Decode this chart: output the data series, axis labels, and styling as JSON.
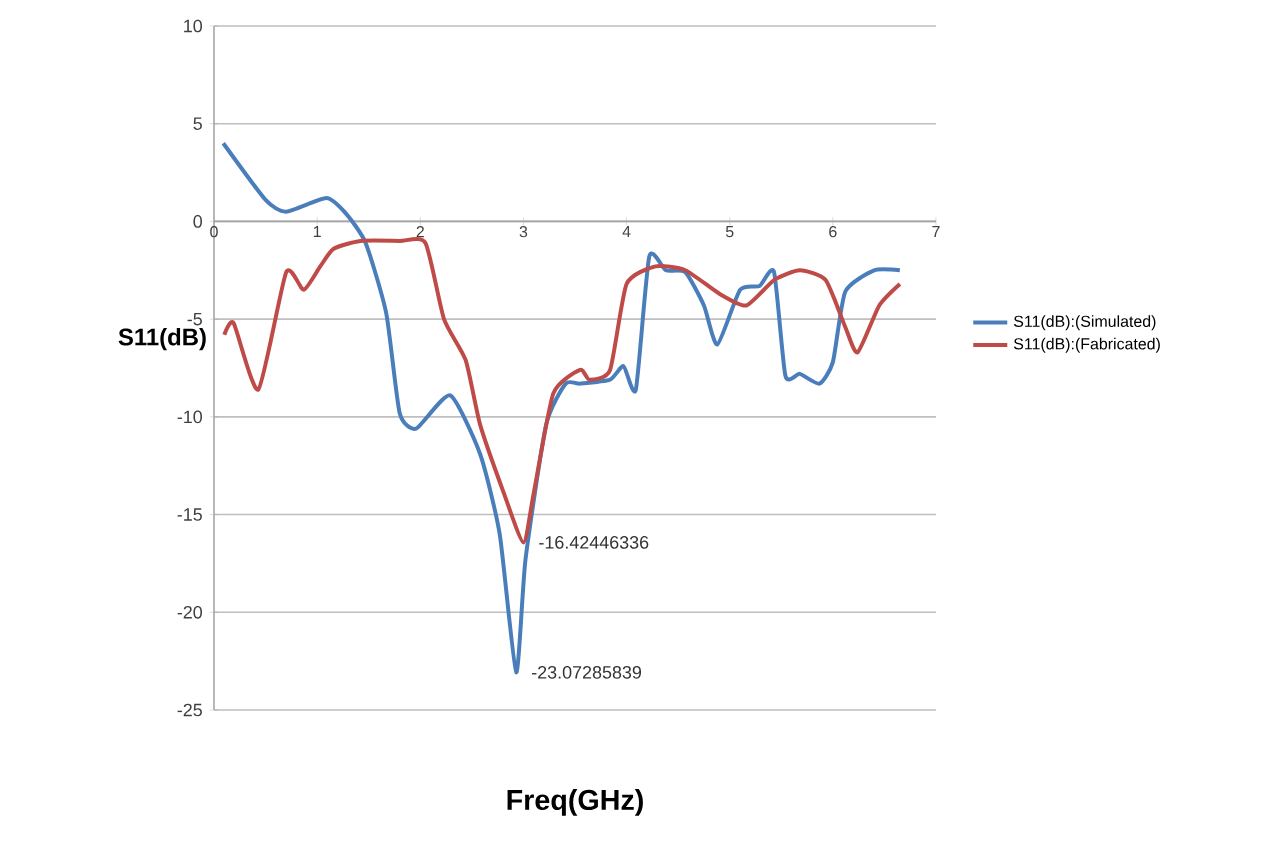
{
  "chart_data": {
    "type": "line",
    "xlabel": "Freq(GHz)",
    "ylabel": "S11(dB)",
    "xlim": [
      0,
      7
    ],
    "xticks": [
      0,
      1,
      2,
      3,
      4,
      5,
      6,
      7
    ],
    "ylim": [
      -25,
      10
    ],
    "yticks": [
      -25,
      -20,
      -15,
      -10,
      -5,
      0,
      5,
      10
    ],
    "grid": "y",
    "legend": "right",
    "marker": "none",
    "line_style": "solid",
    "series": [
      {
        "name": "S11(dB):(Simulated)",
        "color": "#4a7ebb",
        "x": [
          0.09,
          0.5,
          0.7,
          1.09,
          1.28,
          1.47,
          1.67,
          1.8,
          1.96,
          2.29,
          2.58,
          2.77,
          2.93,
          3.02,
          3.22,
          3.41,
          3.55,
          3.84,
          3.97,
          4.09,
          4.22,
          4.38,
          4.57,
          4.75,
          4.88,
          5.1,
          5.29,
          5.43,
          5.54,
          5.68,
          5.87,
          6.0,
          6.12,
          6.4,
          6.65
        ],
        "values": [
          4.0,
          1.1,
          0.5,
          1.2,
          0.4,
          -1.1,
          -4.7,
          -9.8,
          -10.6,
          -8.9,
          -11.9,
          -16,
          -23.07285839,
          -17.3,
          -10.4,
          -8.3,
          -8.3,
          -8.1,
          -7.4,
          -8.6,
          -1.8,
          -2.5,
          -2.6,
          -4.3,
          -6.3,
          -3.5,
          -3.3,
          -2.6,
          -7.9,
          -7.8,
          -8.3,
          -7.2,
          -3.6,
          -2.5,
          -2.5
        ]
      },
      {
        "name": "S11(dB):(Fabricated)",
        "color": "#be4b48",
        "x": [
          0.1,
          0.19,
          0.43,
          0.7,
          0.87,
          1.03,
          1.16,
          1.42,
          1.8,
          2.05,
          2.23,
          2.44,
          2.58,
          2.81,
          3.0,
          3.1,
          3.29,
          3.55,
          3.64,
          3.84,
          4.0,
          4.28,
          4.57,
          4.9,
          5.16,
          5.43,
          5.68,
          5.93,
          6.12,
          6.24,
          6.45,
          6.65
        ],
        "values": [
          -5.8,
          -5.2,
          -8.6,
          -2.6,
          -3.5,
          -2.3,
          -1.4,
          -1.0,
          -1.0,
          -1.1,
          -5.0,
          -7.1,
          -10.4,
          -13.9,
          -16.42446336,
          -13.9,
          -8.8,
          -7.6,
          -8.1,
          -7.6,
          -3.2,
          -2.3,
          -2.5,
          -3.7,
          -4.3,
          -3.0,
          -2.5,
          -3.0,
          -5.4,
          -6.7,
          -4.3,
          -3.2
        ]
      }
    ],
    "annotations": [
      {
        "text": "-16.42446336",
        "x": 3.0,
        "y": -16.42446336
      },
      {
        "text": "-23.07285839",
        "x": 2.93,
        "y": -23.07285839
      }
    ]
  }
}
